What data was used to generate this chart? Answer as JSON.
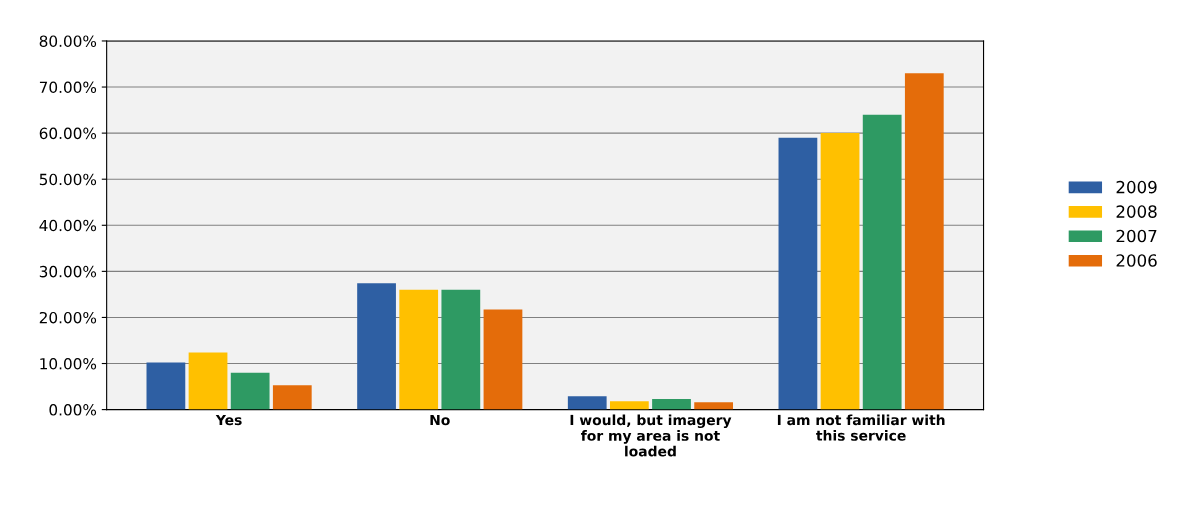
{
  "chart_data": {
    "type": "bar",
    "categories": [
      "Yes",
      "No",
      "I would, but imagery\nfor my area is not\nloaded",
      "I am not familiar with\nthis service"
    ],
    "series": [
      {
        "name": "2009",
        "color": "#2e5fa3",
        "values": [
          10.2,
          27.4,
          2.9,
          59
        ]
      },
      {
        "name": "2008",
        "color": "#ffc000",
        "values": [
          12.4,
          26,
          1.8,
          60
        ]
      },
      {
        "name": "2007",
        "color": "#2e9a63",
        "values": [
          8,
          26,
          2.3,
          64
        ]
      },
      {
        "name": "2006",
        "color": "#e46c0a",
        "values": [
          5.3,
          21.7,
          1.6,
          73
        ]
      }
    ],
    "ylim": [
      0,
      80
    ],
    "yticks": [
      {
        "value": 0,
        "label": "0.00%"
      },
      {
        "value": 10,
        "label": "10.00%"
      },
      {
        "value": 20,
        "label": "20.00%"
      },
      {
        "value": 30,
        "label": "30.00%"
      },
      {
        "value": 40,
        "label": "40.00%"
      },
      {
        "value": 50,
        "label": "50.00%"
      },
      {
        "value": 60,
        "label": "60.00%"
      },
      {
        "value": 70,
        "label": "70.00%"
      },
      {
        "value": 80,
        "label": "80.00%"
      }
    ],
    "grid": "y",
    "legend": "right"
  }
}
